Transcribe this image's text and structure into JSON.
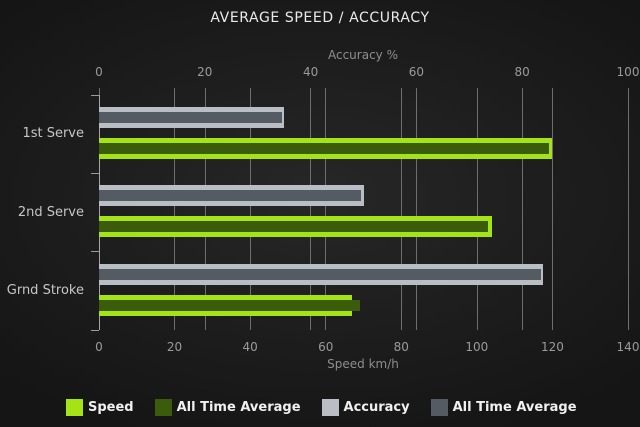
{
  "title": "AVERAGE SPEED / ACCURACY",
  "colors": {
    "background": "#1d1d1d",
    "speed": "#a4e416",
    "speed_all_time_average": "#3b5c0a",
    "accuracy": "#b9bec4",
    "accuracy_all_time_average": "#555b63",
    "gridline": "#6e6e6e",
    "axis_text": "#9a9a9a",
    "title_text": "#eaeaea"
  },
  "chart_data": {
    "type": "bar",
    "orientation": "horizontal",
    "title": "AVERAGE SPEED / ACCURACY",
    "categories": [
      "1st Serve",
      "2nd Serve",
      "Grnd Stroke"
    ],
    "top_axis": {
      "title": "Accuracy %",
      "range": [
        0,
        100
      ],
      "ticks": [
        0,
        20,
        40,
        60,
        80,
        100
      ]
    },
    "bottom_axis": {
      "title": "Speed km/h",
      "range": [
        0,
        140
      ],
      "ticks": [
        0,
        20,
        40,
        60,
        80,
        100,
        120,
        140
      ]
    },
    "grid": true,
    "legend_position": "bottom",
    "series": [
      {
        "name": "Speed",
        "axis": "bottom",
        "role": "current",
        "color": "#a4e416",
        "values": [
          120,
          104,
          67
        ]
      },
      {
        "name": "All Time Average",
        "axis": "bottom",
        "role": "average",
        "color": "#3b5c0a",
        "values": [
          119,
          103,
          69
        ]
      },
      {
        "name": "Accuracy",
        "axis": "top",
        "role": "current",
        "color": "#b9bec4",
        "values": [
          35,
          50,
          84
        ]
      },
      {
        "name": "All Time Average",
        "axis": "top",
        "role": "average",
        "color": "#555b63",
        "values": [
          34.5,
          49.5,
          83.5
        ]
      }
    ]
  }
}
